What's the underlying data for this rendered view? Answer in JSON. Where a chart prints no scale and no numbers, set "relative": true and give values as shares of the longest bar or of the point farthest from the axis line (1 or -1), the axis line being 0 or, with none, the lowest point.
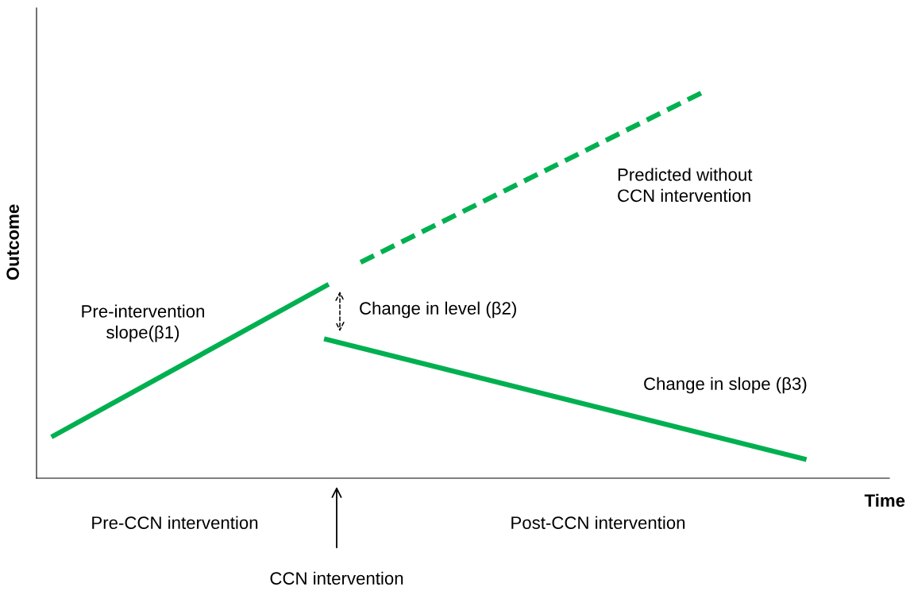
{
  "chart_data": {
    "type": "line",
    "relative": true,
    "xlabel": "Time",
    "ylabel": "Outcome",
    "categories": [
      null,
      null,
      null,
      null,
      null,
      null,
      null,
      null,
      null,
      null,
      null,
      null,
      null,
      null,
      null,
      null,
      null,
      null,
      null,
      null,
      null,
      null,
      null,
      null,
      null
    ],
    "series": [
      {
        "color": "#00b050",
        "line_style": "solid",
        "values": [
          0.11,
          null,
          null,
          null,
          null,
          null,
          null,
          null,
          0.5,
          null,
          null,
          null,
          null,
          null,
          null,
          null,
          null,
          null,
          null,
          null,
          null,
          null,
          null,
          null,
          null
        ]
      },
      {
        "color": "#00b050",
        "line_style": "solid",
        "values": [
          null,
          null,
          null,
          null,
          null,
          null,
          null,
          null,
          0.36,
          null,
          null,
          null,
          null,
          null,
          null,
          null,
          null,
          null,
          null,
          null,
          null,
          null,
          0.05,
          null,
          null
        ]
      },
      {
        "color": "#00b050",
        "line_style": "dashed",
        "values": [
          null,
          null,
          null,
          null,
          null,
          null,
          null,
          null,
          null,
          0.56,
          null,
          null,
          null,
          null,
          null,
          null,
          null,
          null,
          null,
          1,
          null,
          null,
          null,
          null,
          null
        ]
      }
    ],
    "annotations": [
      "Pre-intervention\nslope(β1)",
      "Change in level (β2)",
      "Predicted without\nCCN intervention",
      "Change in slope (β3)",
      "Pre-CCN intervention",
      "Post-CCN intervention",
      "CCN intervention"
    ],
    "marker": "none"
  }
}
